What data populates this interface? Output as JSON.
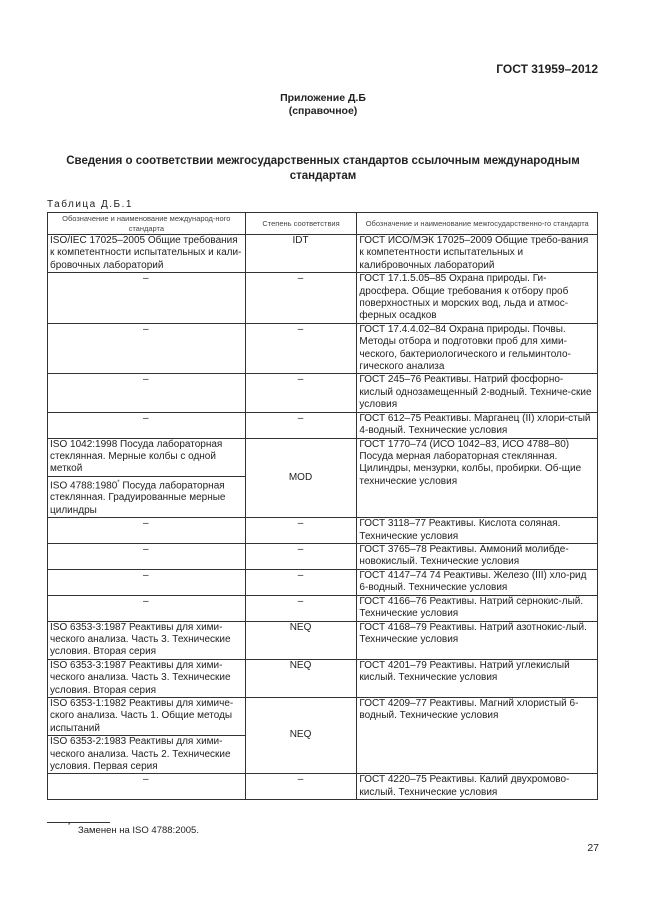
{
  "header": {
    "doc_number": "ГОСТ 31959–2012"
  },
  "appendix": {
    "title": "Приложение Д.Б",
    "subtitle": "(справочное)"
  },
  "section_title": "Сведения о соответствии межгосударственных стандартов ссылочным международным стандартам",
  "table": {
    "caption": "Таблица Д.Б.1",
    "columns": [
      "Обозначение и наименование международ-ного стандарта",
      "Степень соответствия",
      "Обозначение и наименование межгосударственно-го стандарта"
    ],
    "rows": [
      {
        "intl": [
          "ISO/IEC 17025–2005 Общие требования к компетентности испытательных и кали-бровочных лабораторий"
        ],
        "degree": "IDT",
        "gost": "ГОСТ ИСО/МЭК 17025–2009 Общие требо-вания к компетентности испытательных и калибровочных лабораторий"
      },
      {
        "intl": [
          "–"
        ],
        "degree": "–",
        "gost": "ГОСТ 17.1.5.05–85 Охрана природы. Ги-дросфера. Общие требования к отбору проб поверхностных и морских вод, льда и атмос-ферных осадков"
      },
      {
        "intl": [
          "–"
        ],
        "degree": "–",
        "gost": "ГОСТ 17.4.4.02–84 Охрана природы. Почвы. Методы отбора и подготовки проб для хими-ческого, бактериологического и гельминтоло-гического анализа"
      },
      {
        "intl": [
          "–"
        ],
        "degree": "–",
        "gost": "ГОСТ 245–76 Реактивы. Натрий фосфорно-кислый однозамещенный 2-водный. Техниче-ские условия"
      },
      {
        "intl": [
          "–"
        ],
        "degree": "–",
        "gost": "ГОСТ 612–75 Реактивы. Марганец (II) хлори-стый 4-водный. Технические условия"
      },
      {
        "intl": [
          "ISO 1042:1998 Посуда лабораторная стеклянная. Мерные колбы с одной меткой",
          "ISO 4788:1980* Посуда лабораторная стеклянная. Градуированные мерные цилиндры"
        ],
        "degree": "MOD",
        "gost": "ГОСТ 1770–74 (ИСО 1042–83,  ИСО 4788–80) Посуда мерная лабораторная стеклянная. Цилиндры, мензурки, колбы, пробирки. Об-щие технические условия"
      },
      {
        "intl": [
          "–"
        ],
        "degree": "–",
        "gost": "ГОСТ 3118–77 Реактивы. Кислота соляная. Технические условия"
      },
      {
        "intl": [
          "–"
        ],
        "degree": "–",
        "gost": "ГОСТ 3765–78 Реактивы. Аммоний молибде-новокислый. Технические условия"
      },
      {
        "intl": [
          "–"
        ],
        "degree": "–",
        "gost": "ГОСТ 4147–74 74 Реактивы. Железо (III) хло-рид 6-водный. Технические условия"
      },
      {
        "intl": [
          "–"
        ],
        "degree": "–",
        "gost": "ГОСТ 4166–76 Реактивы. Натрий сернокис-лый. Технические условия"
      },
      {
        "intl": [
          "ISO 6353-3:1987 Реактивы для хими-ческого анализа. Часть 3. Технические условия. Вторая серия"
        ],
        "degree": "NEQ",
        "gost": "ГОСТ 4168–79 Реактивы. Натрий азотнокис-лый. Технические условия"
      },
      {
        "intl": [
          "ISO 6353-3:1987 Реактивы для хими-ческого анализа. Часть 3. Технические условия. Вторая серия"
        ],
        "degree": "NEQ",
        "gost": "ГОСТ 4201–79 Реактивы. Натрий углекислый кислый. Технические условия"
      },
      {
        "intl": [
          "ISO 6353-1:1982 Реактивы для химиче-ского анализа. Часть 1. Общие методы испытаний",
          "ISO 6353-2:1983 Реактивы для хими-ческого анализа. Часть 2. Технические условия. Первая серия"
        ],
        "degree": "NEQ",
        "gost": "ГОСТ 4209–77 Реактивы. Магний хлористый 6-водный. Технические условия"
      },
      {
        "intl": [
          "–"
        ],
        "degree": "–",
        "gost": "ГОСТ 4220–75 Реактивы. Калий двухромово-кислый. Технические условия"
      }
    ]
  },
  "footnote": {
    "mark": "*",
    "text": "Заменен на ISO 4788:2005."
  },
  "page_number": "27"
}
